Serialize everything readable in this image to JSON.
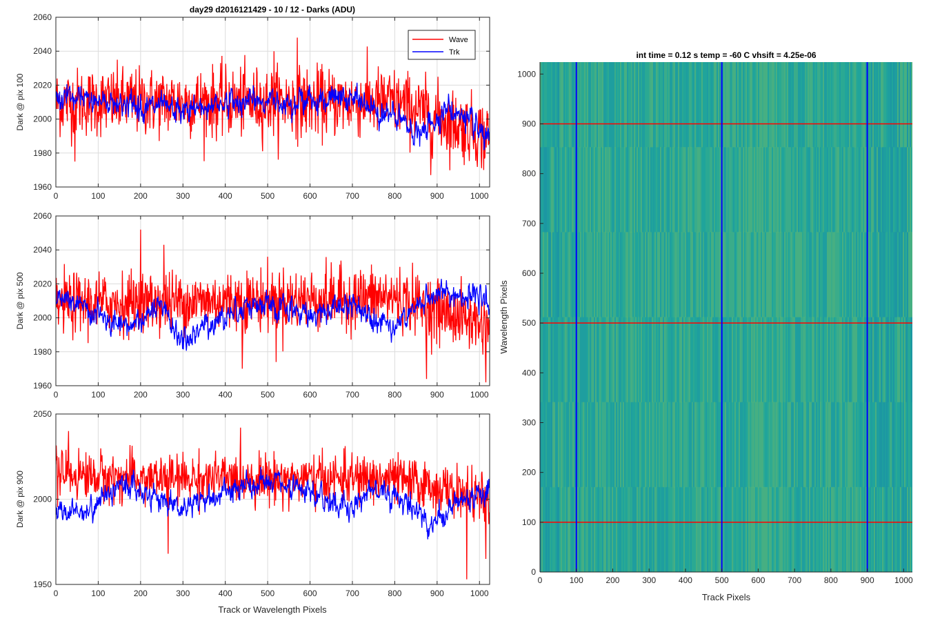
{
  "figure": {
    "title": "day29 d2016121429 - 10 / 12 - Darks (ADU)",
    "xlabel_shared": "Track or Wavelength Pixels"
  },
  "legend": {
    "entries": [
      {
        "label": "Wave",
        "color": "#ff0000"
      },
      {
        "label": "Trk",
        "color": "#0000ff"
      }
    ],
    "placement": "top-right"
  },
  "chart_data": [
    {
      "type": "line",
      "ylabel": "Dark @ pix 100",
      "xlim": [
        0,
        1024
      ],
      "ylim": [
        1960,
        2060
      ],
      "xticks": [
        0,
        100,
        200,
        300,
        400,
        500,
        600,
        700,
        800,
        900,
        1000
      ],
      "yticks": [
        1960,
        1980,
        2000,
        2020,
        2040,
        2060
      ],
      "grid": true,
      "series": [
        {
          "name": "Wave",
          "color": "#ff0000",
          "x_range": [
            0,
            1023
          ],
          "mean": 2010,
          "spread": 10,
          "trend": [
            [
              0,
              2010
            ],
            [
              800,
              2010
            ],
            [
              1023,
              1990
            ]
          ],
          "spikes": [
            [
              570,
              2048
            ],
            [
              515,
              2040
            ],
            [
              885,
              1967
            ],
            [
              45,
              1975
            ],
            [
              1010,
              1970
            ]
          ]
        },
        {
          "name": "Trk",
          "color": "#0000ff",
          "x_range": [
            0,
            1023
          ],
          "mean": 2010,
          "spread": 5,
          "trend": [
            [
              0,
              2012
            ],
            [
              150,
              2010
            ],
            [
              300,
              2004
            ],
            [
              400,
              2010
            ],
            [
              700,
              2012
            ],
            [
              820,
              1998
            ],
            [
              860,
              1990
            ],
            [
              920,
              2006
            ],
            [
              960,
              2002
            ],
            [
              1023,
              1985
            ]
          ]
        }
      ]
    },
    {
      "type": "line",
      "ylabel": "Dark @ pix 500",
      "xlim": [
        0,
        1024
      ],
      "ylim": [
        1960,
        2060
      ],
      "xticks": [
        0,
        100,
        200,
        300,
        400,
        500,
        600,
        700,
        800,
        900,
        1000
      ],
      "yticks": [
        1960,
        1980,
        2000,
        2020,
        2040,
        2060
      ],
      "grid": true,
      "series": [
        {
          "name": "Wave",
          "color": "#ff0000",
          "x_range": [
            0,
            1023
          ],
          "mean": 2010,
          "spread": 9,
          "trend": [
            [
              0,
              2008
            ],
            [
              800,
              2012
            ],
            [
              1023,
              1995
            ]
          ],
          "spikes": [
            [
              200,
              2052
            ],
            [
              255,
              2043
            ],
            [
              440,
              1970
            ],
            [
              520,
              1974
            ],
            [
              875,
              1964
            ],
            [
              1015,
              1962
            ]
          ]
        },
        {
          "name": "Trk",
          "color": "#0000ff",
          "x_range": [
            0,
            1023
          ],
          "mean": 2005,
          "spread": 5,
          "trend": [
            [
              0,
              2012
            ],
            [
              100,
              2002
            ],
            [
              150,
              1992
            ],
            [
              250,
              2006
            ],
            [
              300,
              1985
            ],
            [
              350,
              1995
            ],
            [
              450,
              2008
            ],
            [
              600,
              2002
            ],
            [
              700,
              2008
            ],
            [
              800,
              1995
            ],
            [
              900,
              2015
            ],
            [
              1023,
              2010
            ]
          ]
        }
      ]
    },
    {
      "type": "line",
      "ylabel": "Dark @ pix 900",
      "xlim": [
        0,
        1024
      ],
      "ylim": [
        1950,
        2050
      ],
      "xticks": [
        0,
        100,
        200,
        300,
        400,
        500,
        600,
        700,
        800,
        900,
        1000
      ],
      "xticklabels": [
        "0",
        "100",
        "200",
        "300",
        "400",
        "500",
        "600",
        "700",
        "800",
        "900",
        "1000"
      ],
      "yticks": [
        1950,
        2000,
        2050
      ],
      "grid": true,
      "series": [
        {
          "name": "Wave",
          "color": "#ff0000",
          "x_range": [
            0,
            1023
          ],
          "mean": 2012,
          "spread": 7,
          "trend": [
            [
              0,
              2015
            ],
            [
              200,
              2012
            ],
            [
              800,
              2012
            ],
            [
              1023,
              2000
            ]
          ],
          "spikes": [
            [
              970,
              1953
            ],
            [
              265,
              1968
            ],
            [
              30,
              2040
            ],
            [
              1015,
              1965
            ]
          ]
        },
        {
          "name": "Trk",
          "color": "#0000ff",
          "x_range": [
            0,
            1023
          ],
          "mean": 2002,
          "spread": 5,
          "trend": [
            [
              0,
              1992
            ],
            [
              80,
              1994
            ],
            [
              150,
              2010
            ],
            [
              250,
              2000
            ],
            [
              300,
              1995
            ],
            [
              350,
              2000
            ],
            [
              500,
              2010
            ],
            [
              700,
              1995
            ],
            [
              750,
              2008
            ],
            [
              850,
              1995
            ],
            [
              880,
              1985
            ],
            [
              960,
              2000
            ],
            [
              1023,
              2006
            ]
          ]
        }
      ]
    },
    {
      "type": "heatmap",
      "title": "int time = 0.12 s    temp = -60 C    vhsift = 4.25e-06",
      "xlabel": "Track Pixels",
      "ylabel": "Wavelength Pixels",
      "xlim": [
        0,
        1024
      ],
      "ylim": [
        0,
        1024
      ],
      "xticks": [
        0,
        100,
        200,
        300,
        400,
        500,
        600,
        700,
        800,
        900,
        1000
      ],
      "yticks": [
        0,
        100,
        200,
        300,
        400,
        500,
        600,
        700,
        800,
        900,
        1000
      ],
      "colormap": "parula",
      "overlay_lines": {
        "vertical": {
          "color": "#0000ff",
          "x": [
            100,
            500,
            900
          ]
        },
        "horizontal": {
          "color": "#ff0000",
          "y": [
            100,
            500,
            900
          ]
        }
      }
    }
  ]
}
